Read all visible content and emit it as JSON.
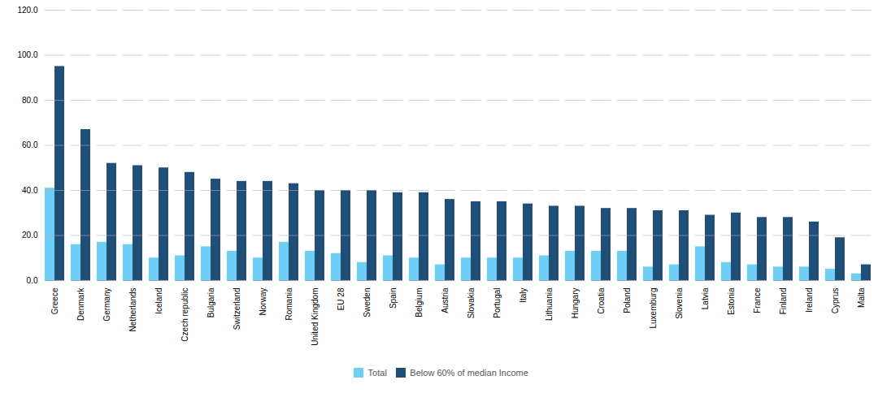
{
  "chart_data": {
    "type": "bar",
    "categories": [
      "Greece",
      "Denmark",
      "Germany",
      "Netherlands",
      "Iceland",
      "Czech republic",
      "Bulgaria",
      "Switzerland",
      "Norway",
      "Romania",
      "United Kingdom",
      "EU 28",
      "Sweden",
      "Spain",
      "Belgium",
      "Austria",
      "Slovakia",
      "Portugal",
      "Italy",
      "Lithuania",
      "Hungary",
      "Croatia",
      "Poland",
      "Luxemburg",
      "Slovenia",
      "Latvia",
      "Estonia",
      "France",
      "Finland",
      "Ireland",
      "Cyprus",
      "Malta"
    ],
    "series": [
      {
        "name": "Total",
        "color": "#6ecff6",
        "values": [
          41,
          16,
          17,
          16,
          10,
          11,
          15,
          13,
          10,
          17,
          13,
          12,
          8,
          11,
          10,
          7,
          10,
          10,
          10,
          11,
          13,
          13,
          13,
          6,
          7,
          15,
          8,
          7,
          6,
          6,
          5,
          3
        ]
      },
      {
        "name": "Below 60% of median Income",
        "color": "#1f4e79",
        "values": [
          95,
          67,
          52,
          51,
          50,
          48,
          45,
          44,
          44,
          43,
          40,
          40,
          40,
          39,
          39,
          36,
          35,
          35,
          34,
          33,
          33,
          32,
          32,
          31,
          31,
          29,
          30,
          28,
          28,
          26,
          19,
          7
        ]
      }
    ],
    "ylim": [
      0,
      120
    ],
    "yticks": [
      {
        "value": 0,
        "label": "0.0"
      },
      {
        "value": 20,
        "label": "20.0"
      },
      {
        "value": 40,
        "label": "40.0"
      },
      {
        "value": 60,
        "label": "60.0"
      },
      {
        "value": 80,
        "label": "80.0"
      },
      {
        "value": 100,
        "label": "100.0"
      },
      {
        "value": 120,
        "label": "120.0"
      }
    ],
    "grid": true,
    "legend": "bottom"
  }
}
